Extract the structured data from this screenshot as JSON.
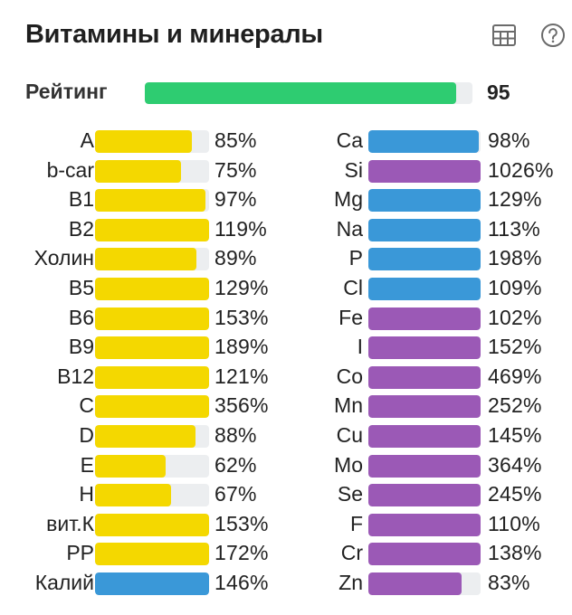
{
  "header": {
    "title": "Витамины и минералы",
    "icons": [
      "table-icon",
      "help-icon"
    ]
  },
  "rating": {
    "label": "Рейтинг",
    "value": "95",
    "fraction": 0.95,
    "color": "#2ecc71"
  },
  "colors": {
    "yellow": "#f4d800",
    "blue": "#3a98d8",
    "purple": "#9b59b6",
    "track": "#eceef0"
  },
  "vitamins": [
    {
      "label": "A",
      "value": "85%",
      "percent": 85,
      "color": "#f4d800"
    },
    {
      "label": "b-car",
      "value": "75%",
      "percent": 75,
      "color": "#f4d800"
    },
    {
      "label": "B1",
      "value": "97%",
      "percent": 97,
      "color": "#f4d800"
    },
    {
      "label": "B2",
      "value": "119%",
      "percent": 119,
      "color": "#f4d800"
    },
    {
      "label": "Холин",
      "value": "89%",
      "percent": 89,
      "color": "#f4d800"
    },
    {
      "label": "B5",
      "value": "129%",
      "percent": 129,
      "color": "#f4d800"
    },
    {
      "label": "B6",
      "value": "153%",
      "percent": 153,
      "color": "#f4d800"
    },
    {
      "label": "B9",
      "value": "189%",
      "percent": 189,
      "color": "#f4d800"
    },
    {
      "label": "B12",
      "value": "121%",
      "percent": 121,
      "color": "#f4d800"
    },
    {
      "label": "C",
      "value": "356%",
      "percent": 356,
      "color": "#f4d800"
    },
    {
      "label": "D",
      "value": "88%",
      "percent": 88,
      "color": "#f4d800"
    },
    {
      "label": "E",
      "value": "62%",
      "percent": 62,
      "color": "#f4d800"
    },
    {
      "label": "H",
      "value": "67%",
      "percent": 67,
      "color": "#f4d800"
    },
    {
      "label": "вит.К",
      "value": "153%",
      "percent": 153,
      "color": "#f4d800"
    },
    {
      "label": "PP",
      "value": "172%",
      "percent": 172,
      "color": "#f4d800"
    },
    {
      "label": "Калий",
      "value": "146%",
      "percent": 146,
      "color": "#3a98d8"
    }
  ],
  "minerals": [
    {
      "label": "Ca",
      "value": "98%",
      "percent": 98,
      "color": "#3a98d8"
    },
    {
      "label": "Si",
      "value": "1026%",
      "percent": 1026,
      "color": "#9b59b6"
    },
    {
      "label": "Mg",
      "value": "129%",
      "percent": 129,
      "color": "#3a98d8"
    },
    {
      "label": "Na",
      "value": "113%",
      "percent": 113,
      "color": "#3a98d8"
    },
    {
      "label": "P",
      "value": "198%",
      "percent": 198,
      "color": "#3a98d8"
    },
    {
      "label": "Cl",
      "value": "109%",
      "percent": 109,
      "color": "#3a98d8"
    },
    {
      "label": "Fe",
      "value": "102%",
      "percent": 102,
      "color": "#9b59b6"
    },
    {
      "label": "I",
      "value": "152%",
      "percent": 152,
      "color": "#9b59b6"
    },
    {
      "label": "Co",
      "value": "469%",
      "percent": 469,
      "color": "#9b59b6"
    },
    {
      "label": "Mn",
      "value": "252%",
      "percent": 252,
      "color": "#9b59b6"
    },
    {
      "label": "Cu",
      "value": "145%",
      "percent": 145,
      "color": "#9b59b6"
    },
    {
      "label": "Mo",
      "value": "364%",
      "percent": 364,
      "color": "#9b59b6"
    },
    {
      "label": "Se",
      "value": "245%",
      "percent": 245,
      "color": "#9b59b6"
    },
    {
      "label": "F",
      "value": "110%",
      "percent": 110,
      "color": "#9b59b6"
    },
    {
      "label": "Cr",
      "value": "138%",
      "percent": 138,
      "color": "#9b59b6"
    },
    {
      "label": "Zn",
      "value": "83%",
      "percent": 83,
      "color": "#9b59b6"
    }
  ]
}
